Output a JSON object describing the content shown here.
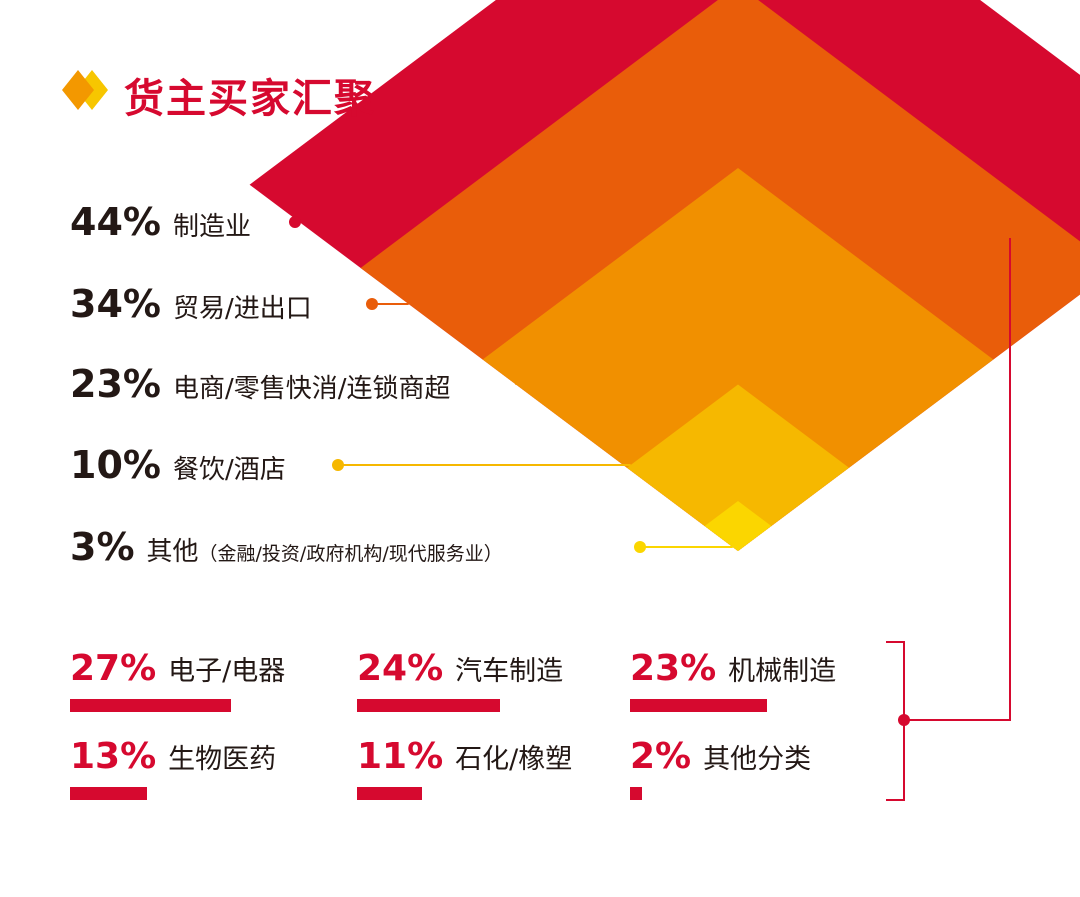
{
  "title": "货主买家汇聚",
  "colors": {
    "accent": "#d6092f",
    "text": "#231815",
    "logo_back": "#f7c600",
    "logo_front": "#f39800"
  },
  "chart_data": [
    {
      "type": "pyramid",
      "title": "货主买家汇聚",
      "unit": "%",
      "series": [
        {
          "name": "制造业",
          "value": 44,
          "label": "44%",
          "note": "",
          "color": "#d6092f"
        },
        {
          "name": "贸易/进出口",
          "value": 34,
          "label": "34%",
          "note": "",
          "color": "#e95d0a"
        },
        {
          "name": "电商/零售快消/连锁商超",
          "value": 23,
          "label": "23%",
          "note": "",
          "color": "#f19000"
        },
        {
          "name": "餐饮/酒店",
          "value": 10,
          "label": "10%",
          "note": "",
          "color": "#f6b800"
        },
        {
          "name": "其他",
          "value": 3,
          "label": "3%",
          "note": "（金融/投资/政府机构/现代服务业）",
          "color": "#fbd600"
        }
      ]
    },
    {
      "type": "bar",
      "unit": "%",
      "categories": [
        "电子/电器",
        "汽车制造",
        "机械制造",
        "生物医药",
        "石化/橡塑",
        "其他分类"
      ],
      "values": [
        27,
        24,
        23,
        13,
        11,
        2
      ],
      "labels": [
        "27%",
        "24%",
        "23%",
        "13%",
        "11%",
        "2%"
      ]
    }
  ]
}
